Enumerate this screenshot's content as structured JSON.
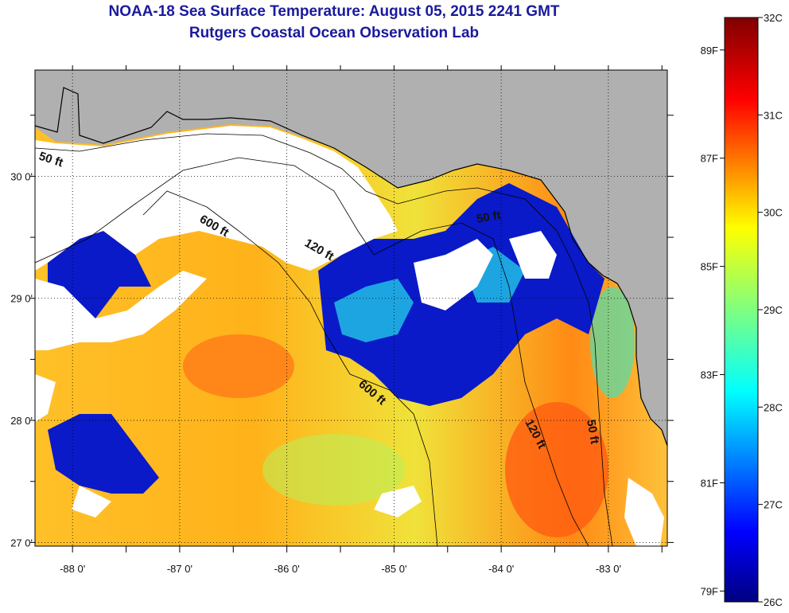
{
  "title_line1": "NOAA-18 Sea Surface Temperature:  August 05, 2015 2241 GMT",
  "title_line2": "Rutgers Coastal Ocean Observation Lab",
  "map": {
    "lon_range": [
      -88.35,
      -82.45
    ],
    "lat_range": [
      26.97,
      30.87
    ],
    "lon_ticks": [
      "-88 0'",
      "-87 0'",
      "-86 0'",
      "-85 0'",
      "-84 0'",
      "-83 0'"
    ],
    "lat_ticks": [
      "27 0'",
      "28 0'",
      "29 0'",
      "30 0'"
    ],
    "contour_labels": [
      "50 ft",
      "600 ft",
      "120 ft",
      "600 ft",
      "50 ft",
      "120 ft",
      "50 ft"
    ],
    "colors": {
      "land": "#b0b0b0",
      "cloud": "#ffffff",
      "coast": "#000000"
    }
  },
  "colorbar": {
    "fahrenheit_labels": [
      "89F",
      "87F",
      "85F",
      "83F",
      "81F",
      "79F"
    ],
    "celsius_labels": [
      "32C",
      "31C",
      "30C",
      "29C",
      "28C",
      "27C",
      "26C"
    ],
    "min_c": 26,
    "max_c": 32
  }
}
